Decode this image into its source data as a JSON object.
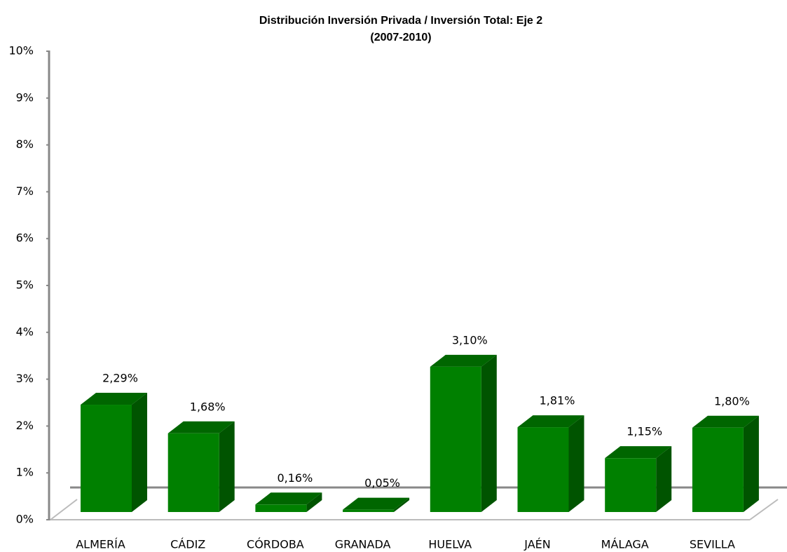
{
  "chart_data": {
    "type": "bar3d",
    "title": "Distribución Inversión Privada / Inversión Total: Eje 2",
    "subtitle": "(2007-2010)",
    "categories": [
      "ALMERÍA",
      "CÁDIZ",
      "CÓRDOBA",
      "GRANADA",
      "HUELVA",
      "JAÉN",
      "MÁLAGA",
      "SEVILLA"
    ],
    "values": [
      2.29,
      1.68,
      0.16,
      0.05,
      3.1,
      1.81,
      1.15,
      1.8
    ],
    "value_labels": [
      "2,29%",
      "1,68%",
      "0,16%",
      "0,05%",
      "3,10%",
      "1,81%",
      "1,15%",
      "1,80%"
    ],
    "color": "#008000",
    "ylim": [
      0,
      10
    ],
    "yticks": [
      {
        "value": 0,
        "label": "0%"
      },
      {
        "value": 1,
        "label": "1%"
      },
      {
        "value": 2,
        "label": "2%"
      },
      {
        "value": 3,
        "label": "3%"
      },
      {
        "value": 4,
        "label": "4%"
      },
      {
        "value": 5,
        "label": "5%"
      },
      {
        "value": 6,
        "label": "6%"
      },
      {
        "value": 7,
        "label": "7%"
      },
      {
        "value": 8,
        "label": "8%"
      },
      {
        "value": 9,
        "label": "9%"
      },
      {
        "value": 10,
        "label": "10%"
      }
    ],
    "grid": false
  }
}
